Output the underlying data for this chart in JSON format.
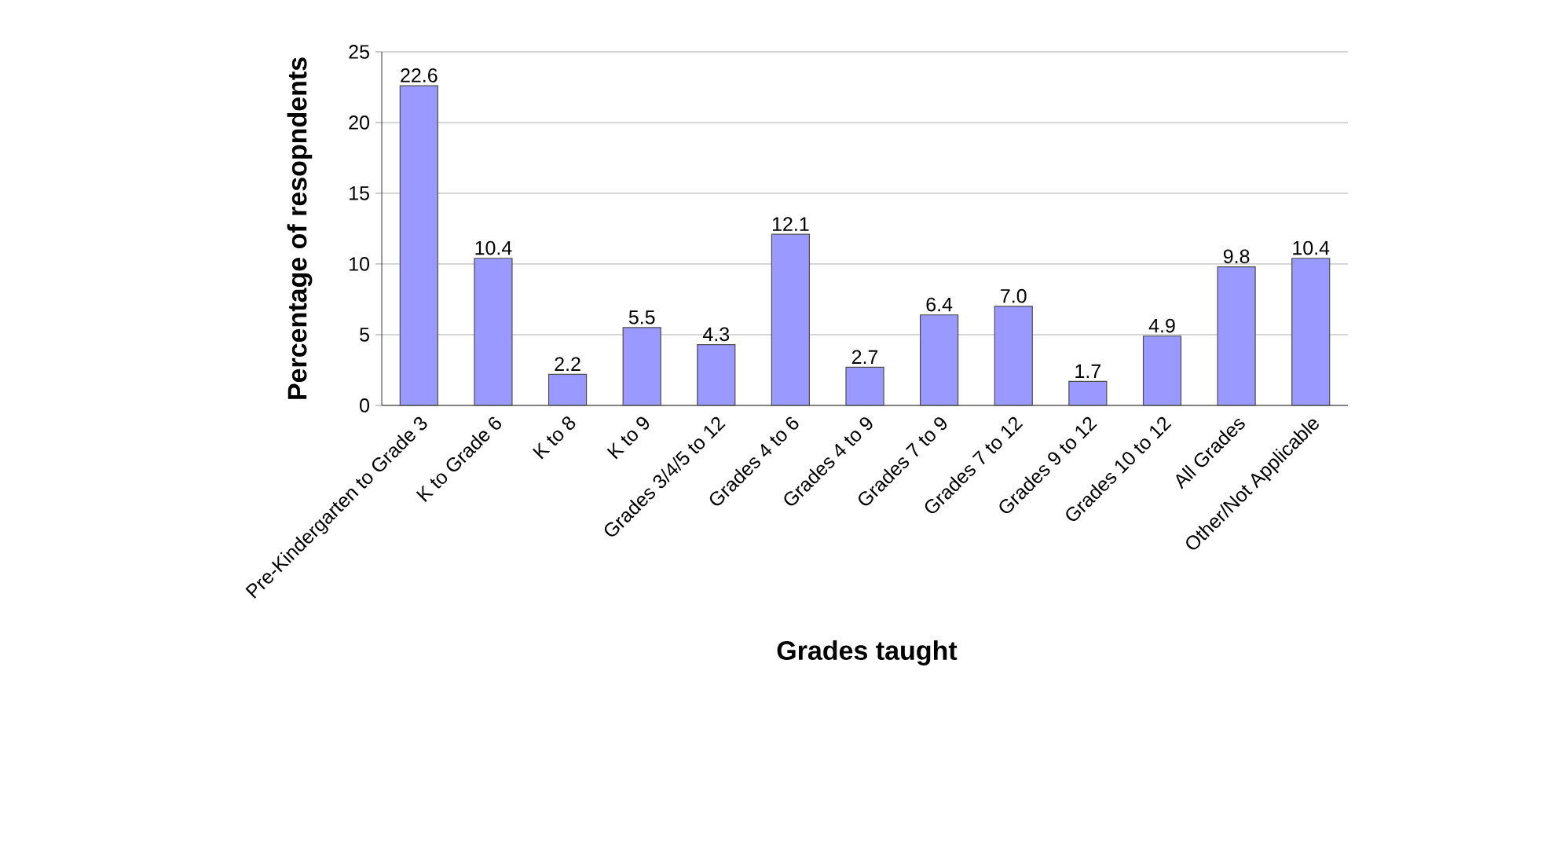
{
  "chart_data": {
    "type": "bar",
    "xlabel": "Grades taught",
    "ylabel": "Percentage of resopndents",
    "categories": [
      "Pre-Kindergarten to Grade 3",
      "K to Grade 6",
      "K to 8",
      "K to 9",
      "Grades 3/4/5 to 12",
      "Grades 4 to 6",
      "Grades 4 to 9",
      "Grades 7 to 9",
      "Grades 7 to 12",
      "Grades 9 to 12",
      "Grades 10 to 12",
      "All Grades",
      "Other/Not Applicable"
    ],
    "values": [
      22.6,
      10.4,
      2.2,
      5.5,
      4.3,
      12.1,
      2.7,
      6.4,
      7.0,
      1.7,
      4.9,
      9.8,
      10.4
    ],
    "value_labels": [
      "22.6",
      "10.4",
      "2.2",
      "5.5",
      "4.3",
      "12.1",
      "2.7",
      "6.4",
      "7.0",
      "1.7",
      "4.9",
      "9.8",
      "10.4"
    ],
    "color": "#9999ff",
    "ylim": [
      0,
      25
    ],
    "yticks": [
      0,
      5,
      10,
      15,
      20,
      25
    ],
    "grid": "y"
  }
}
